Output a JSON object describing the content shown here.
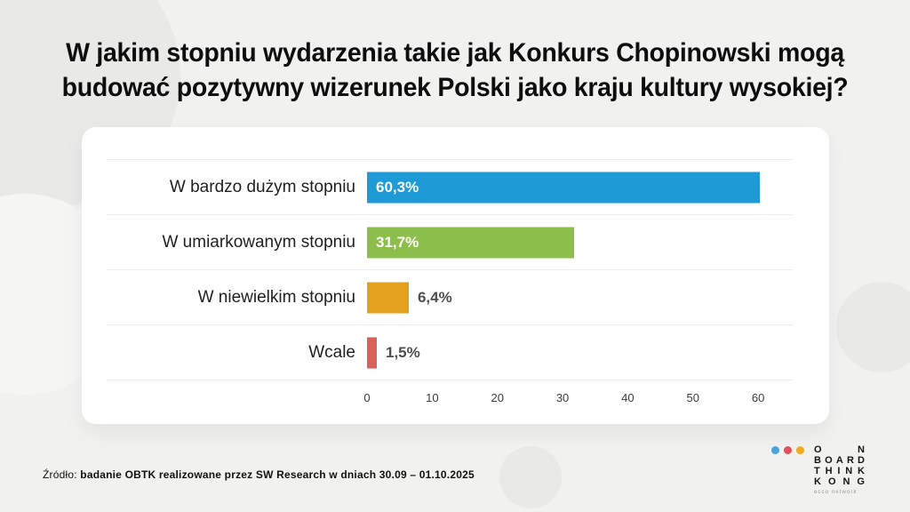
{
  "header": {
    "line1": "W jakim stopniu wydarzenia takie jak Konkurs Chopinowski mogą",
    "line2": "budować pozytywny wizerunek Polski jako kraju kultury wysokiej?"
  },
  "chart_data": {
    "type": "bar",
    "orientation": "horizontal",
    "title": "W jakim stopniu wydarzenia takie jak Konkurs Chopinowski mogą budować pozytywny wizerunek Polski jako kraju kultury wysokiej?",
    "categories": [
      "W bardzo dużym stopniu",
      "W umiarkowanym stopniu",
      "W niewielkim stopniu",
      "Wcale"
    ],
    "values": [
      60.3,
      31.7,
      6.4,
      1.5
    ],
    "value_labels": [
      "60,3%",
      "31,7%",
      "6,4%",
      "1,5%"
    ],
    "bar_colors": [
      "#1E9AD6",
      "#8CBE4B",
      "#E3A01D",
      "#D96158"
    ],
    "x_ticks": [
      0,
      10,
      20,
      30,
      40,
      50,
      60
    ],
    "xlim": [
      0,
      65.3
    ],
    "inside_label_min": 10,
    "grid": false,
    "legend": "none"
  },
  "source": {
    "prefix": "Źródło:",
    "text": "badanie OBTK realizowane przez SW Research w dniach 30.09 – 01.10.2025"
  },
  "logo": {
    "dot_colors": [
      "#4AA3DC",
      "#E2505C",
      "#F7A823"
    ],
    "lines": [
      "ON",
      "BOARD",
      "THINK",
      "KONG"
    ],
    "tagline": "ecco network"
  }
}
